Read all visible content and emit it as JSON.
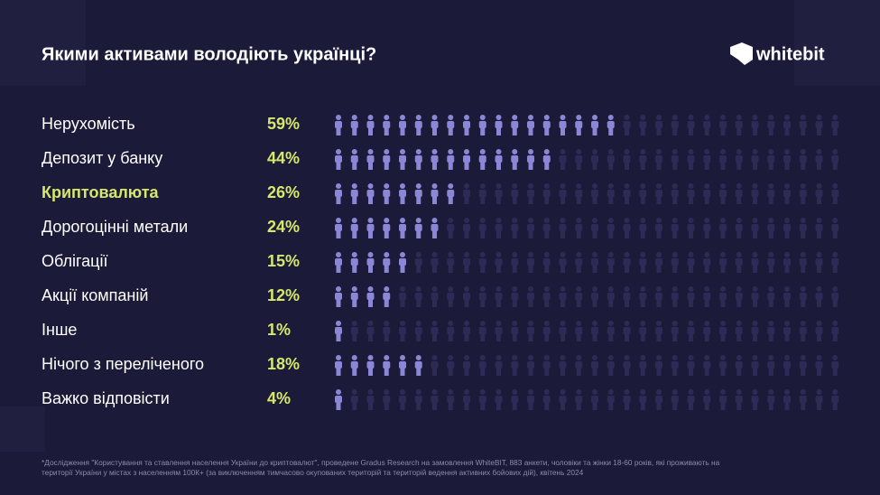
{
  "chart_data": {
    "type": "pictogram",
    "title": "Якими активами володіють українці?",
    "logo": "whitebit",
    "categories": [
      "Нерухомість",
      "Депозит у банку",
      "Криптовалюта",
      "Дорогоцінні метали",
      "Облігації",
      "Акції компаній",
      "Інше",
      "Нічого з переліченого",
      "Важко відповісти"
    ],
    "values": [
      59,
      44,
      26,
      24,
      15,
      12,
      1,
      18,
      4
    ],
    "value_labels": [
      "59%",
      "44%",
      "26%",
      "24%",
      "15%",
      "12%",
      "1%",
      "18%",
      "4%"
    ],
    "highlight_index": 2,
    "color": "#8b87d6",
    "footnote": [
      "*Дослідження \"Користування та ставлення населення України до криптовалют\", проведене Gradus Research на замовлення WhiteBIT, 883 анкети, чоловіки та жінки 18-60 років, які проживають на",
      "території України у містах з населенням 100К+ (за виключенням тимчасово окупованих територій та територій ведення активних бойових дій), квітень 2024"
    ]
  }
}
